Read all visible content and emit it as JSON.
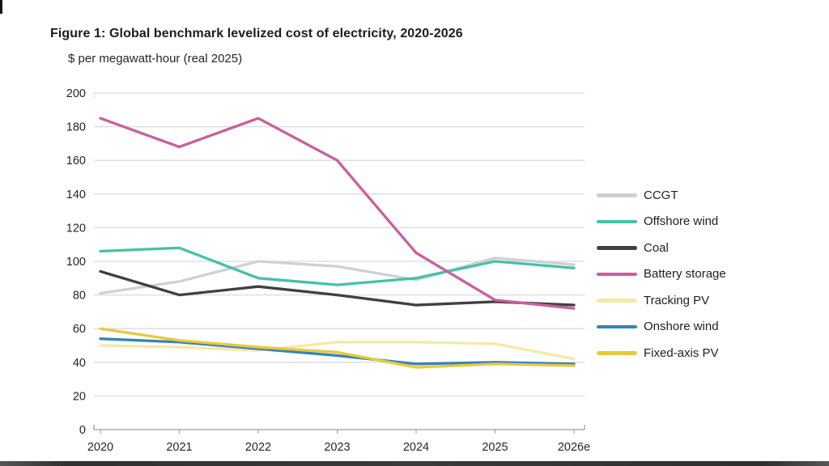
{
  "header": {
    "title_main": "Figure 1: Global benchmark levelized cost of electricity, ",
    "title_period": "2020-2026"
  },
  "chart_data": {
    "type": "line",
    "title": "Figure 1: Global benchmark levelized cost of electricity, 2020-2026",
    "subtitle": "$ per megawatt-hour (real 2025)",
    "xlabel": "",
    "ylabel": "$ per megawatt-hour (real 2025)",
    "ylim": [
      0,
      200
    ],
    "ytick_step": 20,
    "grid": "horizontal",
    "legend_position": "right",
    "categories": [
      "2020",
      "2021",
      "2022",
      "2023",
      "2024",
      "2025",
      "2026e"
    ],
    "series": [
      {
        "name": "CCGT",
        "color": "#cfd1d0",
        "values": [
          81,
          88,
          100,
          97,
          89,
          102,
          98
        ]
      },
      {
        "name": "Offshore wind",
        "color": "#45c1a8",
        "values": [
          106,
          108,
          90,
          86,
          90,
          100,
          96
        ]
      },
      {
        "name": "Coal",
        "color": "#404040",
        "values": [
          94,
          80,
          85,
          80,
          74,
          76,
          74
        ]
      },
      {
        "name": "Battery storage",
        "color": "#c95f9e",
        "values": [
          185,
          168,
          185,
          160,
          105,
          77,
          72
        ]
      },
      {
        "name": "Tracking PV",
        "color": "#f5e9a8",
        "values": [
          50,
          49,
          47,
          52,
          52,
          51,
          42
        ]
      },
      {
        "name": "Onshore wind",
        "color": "#3583bb",
        "values": [
          54,
          52,
          48,
          44,
          39,
          40,
          39
        ]
      },
      {
        "name": "Fixed-axis PV",
        "color": "#e8c93e",
        "values": [
          60,
          53,
          49,
          46,
          37,
          39,
          38
        ]
      }
    ],
    "axis_text_color": "#262626",
    "gridline_color": "#dcdcdc",
    "axis_line_color": "#9a9a9a"
  }
}
